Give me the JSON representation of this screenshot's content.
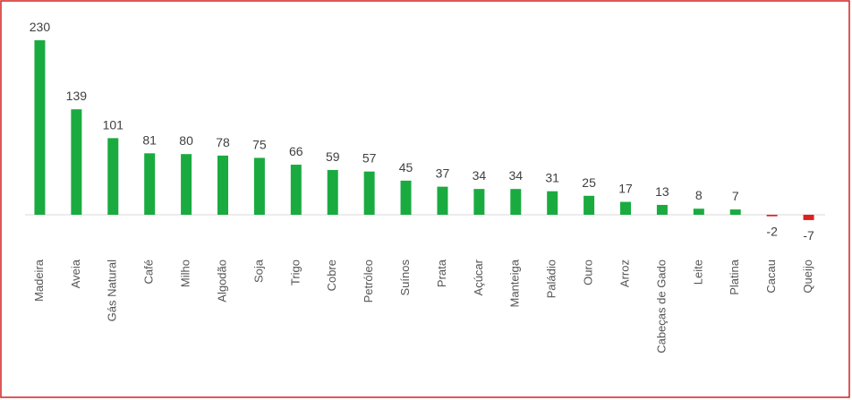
{
  "chart_data": {
    "type": "bar",
    "categories": [
      "Madeira",
      "Aveia",
      "Gás Natural",
      "Café",
      "Milho",
      "Algodão",
      "Soja",
      "Trigo",
      "Cobre",
      "Petróleo",
      "Suínos",
      "Prata",
      "Açúcar",
      "Manteiga",
      "Paládio",
      "Ouro",
      "Arroz",
      "Cabeças de Gado",
      "Leite",
      "Platina",
      "Cacau",
      "Queijo"
    ],
    "values": [
      230,
      139,
      101,
      81,
      80,
      78,
      75,
      66,
      59,
      57,
      45,
      37,
      34,
      34,
      31,
      25,
      17,
      13,
      8,
      7,
      -2,
      -7
    ],
    "color": "#1aab40",
    "negative_color": "#e0201e"
  }
}
